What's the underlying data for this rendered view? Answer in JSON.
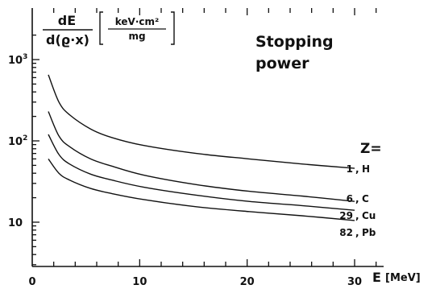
{
  "chart_data": {
    "type": "line",
    "title": "Stopping power",
    "title_lines": [
      "Stopping",
      "power"
    ],
    "ylabel": {
      "numerator": "dE",
      "denominator": "d(ϱ·x)",
      "unit_numerator": "keV·cm²",
      "unit_denominator": "mg"
    },
    "xlabel": {
      "symbol": "E",
      "unit": "[MeV]"
    },
    "x_scale": "linear",
    "y_scale": "log",
    "xlim": [
      0,
      32
    ],
    "ylim": [
      3,
      2000
    ],
    "x_ticks": [
      {
        "value": 0,
        "label": "0"
      },
      {
        "value": 10,
        "label": "10"
      },
      {
        "value": 20,
        "label": "20"
      },
      {
        "value": 30,
        "label": "30"
      }
    ],
    "y_ticks": [
      {
        "value": 10,
        "label": "10"
      },
      {
        "value": 100,
        "label": "10²",
        "base": "10",
        "exp": "2"
      },
      {
        "value": 1000,
        "label": "10³",
        "base": "10",
        "exp": "3"
      }
    ],
    "legend_header": "Z=",
    "grid": false,
    "series": [
      {
        "name": "1, H",
        "label_line1": "1",
        "label_line2": "H",
        "x": [
          1,
          2,
          3,
          5,
          7,
          10,
          15,
          20,
          25,
          30
        ],
        "y": [
          650,
          300,
          210,
          140,
          110,
          88,
          70,
          60,
          52,
          46
        ]
      },
      {
        "name": "6, C",
        "label_line1": "6",
        "label_line2": "C",
        "x": [
          1,
          2,
          3,
          5,
          7,
          10,
          15,
          20,
          25,
          30
        ],
        "y": [
          230,
          115,
          85,
          60,
          49,
          38,
          29,
          24,
          21,
          18
        ]
      },
      {
        "name": "29, Cu",
        "label_line1": "29",
        "label_line2": "Cu",
        "x": [
          1,
          2,
          3,
          5,
          7,
          10,
          15,
          20,
          25,
          30
        ],
        "y": [
          120,
          68,
          52,
          39,
          33,
          27,
          21.5,
          18,
          16,
          14
        ]
      },
      {
        "name": "82, Pb",
        "label_line1": "82",
        "label_line2": "Pb",
        "x": [
          1,
          2,
          3,
          5,
          7,
          10,
          15,
          20,
          25,
          30
        ],
        "y": [
          60,
          40,
          33,
          26,
          22.5,
          19,
          15.5,
          13.5,
          12,
          10.5
        ]
      }
    ]
  }
}
